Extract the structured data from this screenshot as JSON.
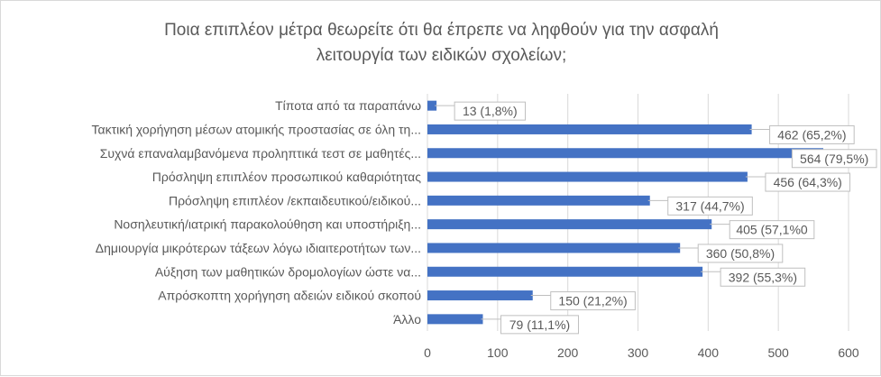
{
  "chart_data": {
    "type": "bar",
    "orientation": "horizontal",
    "title_lines": [
      "Ποια επιπλέον μέτρα θεωρείτε ότι θα έπρεπε να ληφθούν για την ασφαλή",
      "λειτουργία των ειδικών σχολείων;"
    ],
    "categories": [
      "Τίποτα από τα παραπάνω",
      "Τακτική χορήγηση μέσων ατομικής προστασίας σε όλη τη...",
      "Συχνά επαναλαμβανόμενα προληπτικά τεστ  σε μαθητές...",
      "Πρόσληψη επιπλέον προσωπικού καθαριότητας",
      "Πρόσληψη επιπλέον /εκπαιδευτικού/ειδικού...",
      "Νοσηλευτική/ιατρική παρακολούθηση και υποστήριξη...",
      "Δημιουργία μικρότερων τάξεων λόγω ιδιαιτεροτήτων των...",
      "Αύξηση των μαθητικών δρομολογίων ώστε να...",
      "Απρόσκοπτη χορήγηση αδειών ειδικού σκοπού",
      "Άλλο"
    ],
    "values": [
      13,
      462,
      564,
      456,
      317,
      405,
      360,
      392,
      150,
      79
    ],
    "data_labels": [
      "13 (1,8%)",
      "462 (65,2%)",
      "564 (79,5%)",
      "456 (64,3%)",
      "317 (44,7%)",
      "405 (57,1%0",
      "360 (50,8%)",
      "392 (55,3%)",
      "150 (21,2%)",
      "79 (11,1%)"
    ],
    "xlim": [
      0,
      600
    ],
    "xticks": [
      0,
      100,
      200,
      300,
      400,
      500,
      600
    ],
    "grid": true,
    "legend": "none",
    "bar_color": "#4472c4",
    "grid_color": "#d9d9d9",
    "label_box_border": "#bfbfbf",
    "text_color": "#595959"
  }
}
